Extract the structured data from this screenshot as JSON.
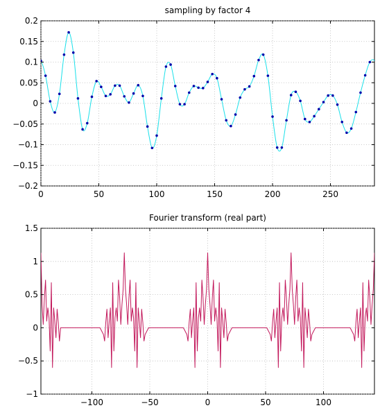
{
  "chart_data": [
    {
      "type": "line",
      "title": "sampling by factor 4",
      "xlabel": "",
      "ylabel": "",
      "xlim": [
        0,
        288
      ],
      "ylim": [
        -0.2,
        0.2
      ],
      "xticks": [
        0,
        50,
        100,
        150,
        200,
        250
      ],
      "yticks": [
        -0.2,
        -0.15,
        -0.1,
        -0.05,
        0,
        0.05,
        0.1,
        0.15,
        0.2
      ],
      "xtick_labels": [
        "0",
        "50",
        "100",
        "150",
        "200",
        "250"
      ],
      "ytick_labels": [
        "−0.2",
        "−0.15",
        "−0.1",
        "−0.05",
        "0",
        "0.05",
        "0.1",
        "0.15",
        "0.2"
      ],
      "grid": true,
      "line_color": "#19e0ea",
      "marker_color": "#0000aa",
      "samples": {
        "x": [
          0,
          4,
          8,
          12,
          16,
          20,
          24,
          28,
          32,
          36,
          40,
          44,
          48,
          52,
          56,
          60,
          64,
          68,
          72,
          76,
          80,
          84,
          88,
          92,
          96,
          100,
          104,
          108,
          112,
          116,
          120,
          124,
          128,
          132,
          136,
          140,
          144,
          148,
          152,
          156,
          160,
          164,
          168,
          172,
          176,
          180,
          184,
          188,
          192,
          196,
          200,
          204,
          208,
          212,
          216,
          220,
          224,
          228,
          232,
          236,
          240,
          244,
          248,
          252,
          256,
          260,
          264,
          268,
          272,
          276,
          280,
          284
        ],
        "y": [
          0.103,
          0.067,
          0.005,
          -0.022,
          0.023,
          0.118,
          0.172,
          0.123,
          0.012,
          -0.063,
          -0.048,
          0.016,
          0.054,
          0.04,
          0.018,
          0.022,
          0.043,
          0.043,
          0.017,
          0.002,
          0.024,
          0.044,
          0.018,
          -0.056,
          -0.108,
          -0.078,
          0.012,
          0.089,
          0.094,
          0.042,
          -0.002,
          -0.002,
          0.026,
          0.042,
          0.038,
          0.037,
          0.052,
          0.071,
          0.061,
          0.01,
          -0.041,
          -0.055,
          -0.027,
          0.014,
          0.034,
          0.041,
          0.066,
          0.105,
          0.118,
          0.067,
          -0.032,
          -0.107,
          -0.107,
          -0.041,
          0.02,
          0.028,
          0.006,
          -0.038,
          -0.045,
          -0.031,
          -0.014,
          0.003,
          0.019,
          0.019,
          -0.003,
          -0.045,
          -0.071,
          -0.061,
          -0.021,
          0.026,
          0.068,
          0.1
        ]
      }
    },
    {
      "type": "line",
      "title": "Fourier transform (real part)",
      "xlabel": "",
      "ylabel": "",
      "xlim": [
        -144,
        144
      ],
      "ylim": [
        -1,
        1.5
      ],
      "xticks": [
        -100,
        -50,
        0,
        50,
        100
      ],
      "yticks": [
        -1,
        -0.5,
        0,
        0.5,
        1,
        1.5
      ],
      "xtick_labels": [
        "−100",
        "−50",
        "0",
        "50",
        "100"
      ],
      "ytick_labels": [
        "−1",
        "−0.5",
        "0",
        "0.5",
        "1",
        "1.5"
      ],
      "grid": true,
      "line_color": "#c2185b",
      "period": 72,
      "series": {
        "x": [
          -144,
          -143,
          -142,
          -141,
          -140,
          -139,
          -138,
          -137,
          -136,
          -135,
          -134,
          -133,
          -132,
          -131,
          -130,
          -129,
          -128,
          -127,
          -123,
          -118,
          -113,
          -108,
          -103,
          -98,
          -93,
          -90,
          -89,
          -88,
          -87,
          -86,
          -85,
          -84,
          -83,
          -82,
          -81,
          -80,
          -79,
          -78,
          -77,
          -76,
          -75,
          -74,
          -73,
          -72,
          -71,
          -70,
          -69,
          -68,
          -67,
          -66,
          -65,
          -64,
          -63,
          -62,
          -61,
          -60,
          -59,
          -58,
          -57,
          -56,
          -55,
          -54,
          -51,
          -46,
          -41,
          -36,
          -31,
          -26,
          -21,
          -18,
          -17,
          -16,
          -15,
          -14,
          -13,
          -12,
          -11,
          -10,
          -9,
          -8,
          -7,
          -6,
          -5,
          -4,
          -3,
          -2,
          -1,
          0,
          1,
          2,
          3,
          4,
          5,
          6,
          7,
          8,
          9,
          10,
          11,
          12,
          13,
          14,
          15,
          16,
          17,
          18,
          21,
          26,
          31,
          36,
          41,
          46,
          51,
          54,
          55,
          56,
          57,
          58,
          59,
          60,
          61,
          62,
          63,
          64,
          65,
          66,
          67,
          68,
          69,
          70,
          71,
          72,
          73,
          74,
          75,
          76,
          77,
          78,
          79,
          80,
          81,
          82,
          83,
          84,
          85,
          86,
          87,
          88,
          89,
          90,
          93,
          98,
          103,
          108,
          113,
          118,
          123,
          126,
          127,
          128,
          129,
          130,
          131,
          132,
          133,
          134,
          135,
          136,
          137,
          138,
          139,
          140,
          141,
          142,
          143,
          144
        ],
        "y": [
          1.13,
          0.35,
          0.05,
          0.45,
          0.72,
          0.1,
          0.3,
          0.15,
          -0.35,
          0.68,
          -0.6,
          0.3,
          0.1,
          -0.15,
          0.28,
          0.08,
          -0.2,
          0,
          0,
          0,
          0,
          0,
          0,
          0,
          0,
          -0.1,
          -0.2,
          0.08,
          0.28,
          -0.15,
          0.1,
          0.3,
          -0.6,
          0.68,
          -0.35,
          0.15,
          0.3,
          0.1,
          0.72,
          0.45,
          0.05,
          0.35,
          0.58,
          1.13,
          0.58,
          0.35,
          0.05,
          0.45,
          0.72,
          0.1,
          0.3,
          0.15,
          -0.35,
          0.68,
          -0.6,
          0.3,
          0.1,
          -0.15,
          0.28,
          0.08,
          -0.2,
          -0.1,
          0,
          0,
          0,
          0,
          0,
          0,
          0,
          -0.1,
          -0.2,
          0.08,
          0.28,
          -0.15,
          0.1,
          0.3,
          -0.6,
          0.68,
          -0.35,
          0.15,
          0.3,
          0.1,
          0.72,
          0.45,
          0.05,
          0.35,
          0.58,
          1.13,
          0.58,
          0.35,
          0.05,
          0.45,
          0.72,
          0.1,
          0.3,
          0.15,
          -0.35,
          0.68,
          -0.6,
          0.3,
          0.1,
          -0.15,
          0.28,
          0.08,
          -0.2,
          -0.1,
          0,
          0,
          0,
          0,
          0,
          0,
          0,
          -0.1,
          -0.2,
          0.08,
          0.28,
          -0.15,
          0.1,
          0.3,
          -0.6,
          0.68,
          -0.35,
          0.15,
          0.3,
          0.1,
          0.72,
          0.45,
          0.05,
          0.35,
          0.58,
          1.13,
          0.58,
          0.35,
          0.05,
          0.45,
          0.72,
          0.1,
          0.3,
          0.15,
          -0.35,
          0.68,
          -0.6,
          0.3,
          0.1,
          -0.15,
          0.28,
          0.08,
          -0.2,
          -0.1,
          0,
          0,
          0,
          0,
          0,
          0,
          0,
          -0.1,
          -0.2,
          0.08,
          0.28,
          -0.15,
          0.1,
          0.3,
          -0.6,
          0.68,
          -0.35,
          0.15,
          0.3,
          0.1,
          0.72,
          0.45,
          0.05,
          0.35,
          0.58,
          1.13
        ]
      }
    }
  ]
}
